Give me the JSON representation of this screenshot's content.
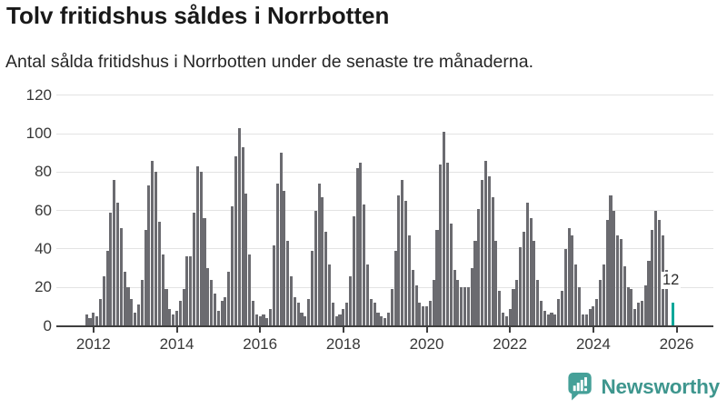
{
  "header": {
    "title": "Tolv fritidshus såldes i Norrbotten",
    "subtitle": "Antal sålda fritidshus i Norrbotten under de senaste tre månaderna."
  },
  "footer": {
    "brand": "Newsworthy",
    "logo_icon": "newsworthy-speech-bubble-bar-chart-icon"
  },
  "colors": {
    "bar": "#6b6b70",
    "highlight": "#00a799",
    "gridline": "#e3e3e3",
    "axis": "#3f3f3f",
    "logo_teal": "#45a098",
    "brand_text": "#3e968e"
  },
  "chart_data": {
    "type": "bar",
    "title": "Tolv fritidshus såldes i Norrbotten",
    "subtitle": "Antal sålda fritidshus i Norrbotten under de senaste tre månaderna.",
    "xlabel": "",
    "ylabel": "",
    "ylim": [
      0,
      120
    ],
    "y_ticks": [
      0,
      20,
      40,
      60,
      80,
      100,
      120
    ],
    "x_tick_years": [
      2012,
      2014,
      2016,
      2018,
      2020,
      2022,
      2024,
      2026
    ],
    "grid": true,
    "legend": false,
    "start_month": "2011-11",
    "frequency": "monthly",
    "values": [
      6,
      4,
      7,
      5,
      14,
      26,
      39,
      59,
      76,
      64,
      51,
      28,
      20,
      14,
      7,
      11,
      24,
      50,
      73,
      86,
      80,
      54,
      37,
      19,
      9,
      6,
      8,
      13,
      19,
      36,
      36,
      59,
      83,
      80,
      56,
      30,
      24,
      17,
      8,
      13,
      15,
      28,
      62,
      88,
      103,
      93,
      69,
      37,
      13,
      6,
      5,
      6,
      4,
      9,
      42,
      74,
      90,
      70,
      44,
      26,
      15,
      12,
      7,
      5,
      14,
      39,
      60,
      74,
      67,
      49,
      32,
      12,
      5,
      6,
      9,
      12,
      26,
      57,
      82,
      85,
      63,
      32,
      14,
      12,
      7,
      5,
      4,
      7,
      19,
      39,
      68,
      76,
      65,
      47,
      29,
      21,
      12,
      10,
      10,
      13,
      24,
      50,
      84,
      101,
      85,
      53,
      29,
      24,
      20,
      20,
      20,
      30,
      44,
      61,
      76,
      86,
      78,
      67,
      44,
      18,
      7,
      5,
      9,
      19,
      24,
      41,
      49,
      64,
      56,
      44,
      24,
      13,
      8,
      6,
      7,
      6,
      14,
      18,
      40,
      51,
      47,
      32,
      20,
      6,
      6,
      9,
      10,
      14,
      24,
      32,
      55,
      68,
      60,
      47,
      45,
      31,
      20,
      19,
      9,
      12,
      13,
      21,
      34,
      50,
      60,
      55,
      47,
      29,
      null,
      12
    ],
    "highlight": {
      "index": 169,
      "value": 12,
      "label": "12"
    }
  }
}
